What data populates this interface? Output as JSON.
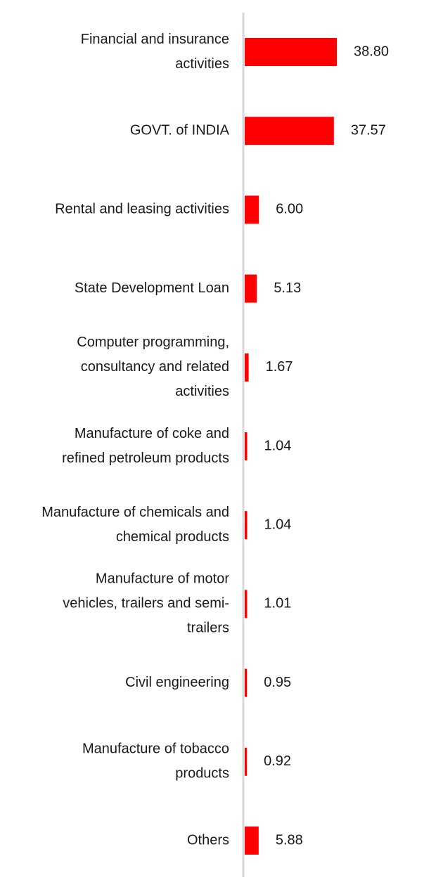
{
  "chart_data": {
    "type": "bar",
    "orientation": "horizontal",
    "title": "",
    "xlabel": "",
    "ylabel": "",
    "categories": [
      "Financial and insurance activities",
      "GOVT. of INDIA",
      "Rental and leasing activities",
      "State Development Loan",
      "Computer programming, consultancy and related activities",
      "Manufacture of coke and refined petroleum products",
      "Manufacture of chemicals and chemical products",
      "Manufacture of motor vehicles, trailers and semi-trailers",
      "Civil engineering",
      "Manufacture of tobacco products",
      "Others"
    ],
    "label_lines": [
      [
        "Financial and insurance",
        "activities"
      ],
      [
        "GOVT. of INDIA"
      ],
      [
        "Rental and leasing activities"
      ],
      [
        "State Development Loan"
      ],
      [
        "Computer programming,",
        "consultancy and related",
        "activities"
      ],
      [
        "Manufacture of coke and",
        "refined petroleum products"
      ],
      [
        "Manufacture of chemicals and",
        "chemical products"
      ],
      [
        "Manufacture of motor",
        "vehicles, trailers and semi-",
        "trailers"
      ],
      [
        "Civil engineering"
      ],
      [
        "Manufacture of tobacco",
        "products"
      ],
      [
        "Others"
      ]
    ],
    "values": [
      38.8,
      37.57,
      6.0,
      5.13,
      1.67,
      1.04,
      1.04,
      1.01,
      0.95,
      0.92,
      5.88
    ],
    "value_labels": [
      "38.80",
      "37.57",
      "6.00",
      "5.13",
      "1.67",
      "1.04",
      "1.04",
      "1.01",
      "0.95",
      "0.92",
      "5.88"
    ],
    "xlim": [
      0,
      38.8
    ],
    "bar_color": "#ff0000",
    "axis_color": "#d9d9d9",
    "grid": false,
    "legend": "none"
  }
}
